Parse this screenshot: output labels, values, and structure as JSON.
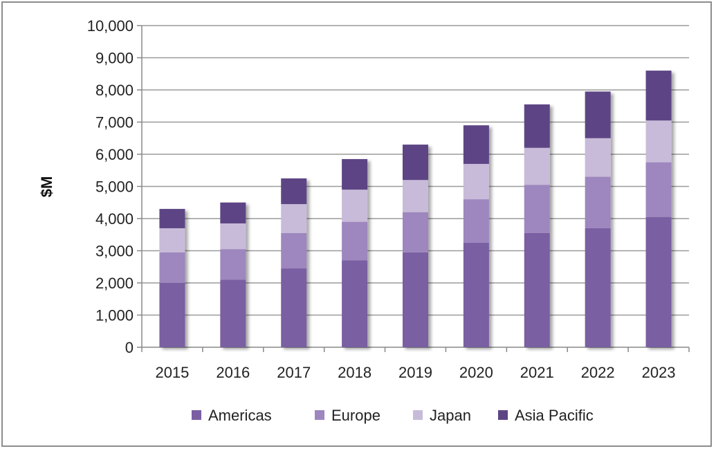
{
  "chart_data": {
    "type": "bar",
    "stacked": true,
    "title": "",
    "xlabel": "",
    "ylabel": "$M",
    "ylim": [
      0,
      10000
    ],
    "yticks": [
      "0",
      "1,000",
      "2,000",
      "3,000",
      "4,000",
      "5,000",
      "6,000",
      "7,000",
      "8,000",
      "9,000",
      "10,000"
    ],
    "categories": [
      "2015",
      "2016",
      "2017",
      "2018",
      "2019",
      "2020",
      "2021",
      "2022",
      "2023"
    ],
    "series": [
      {
        "name": "Americas",
        "color": "#7a5fa3",
        "values": [
          2000,
          2100,
          2450,
          2700,
          2950,
          3250,
          3550,
          3700,
          4050
        ]
      },
      {
        "name": "Europe",
        "color": "#9d87be",
        "values": [
          950,
          950,
          1100,
          1200,
          1250,
          1350,
          1500,
          1600,
          1700
        ]
      },
      {
        "name": "Japan",
        "color": "#c8bbd9",
        "values": [
          750,
          800,
          900,
          1000,
          1000,
          1100,
          1150,
          1200,
          1300
        ]
      },
      {
        "name": "Asia Pacific",
        "color": "#5d4585",
        "values": [
          600,
          650,
          800,
          950,
          1100,
          1200,
          1350,
          1450,
          1550
        ]
      }
    ],
    "grid": true,
    "legend_position": "bottom"
  }
}
